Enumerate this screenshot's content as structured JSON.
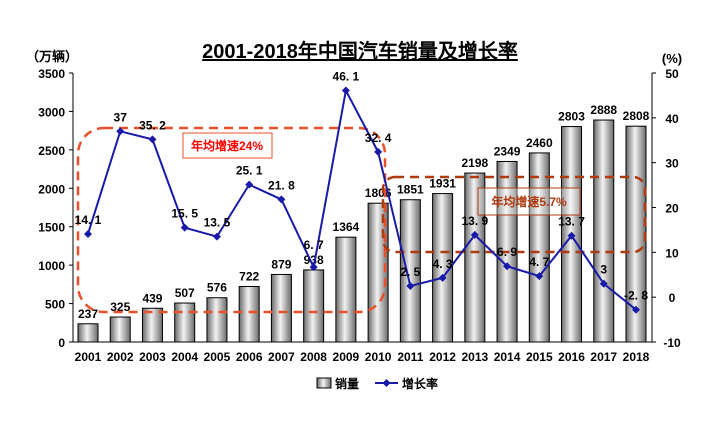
{
  "chart_data": {
    "type": "bar+line",
    "title": "2001-2018年中国汽车销量及增长率",
    "ylabel_left": "（万辆）",
    "ylabel_right": "(%)",
    "categories": [
      "2001",
      "2002",
      "2003",
      "2004",
      "2005",
      "2006",
      "2007",
      "2008",
      "2009",
      "2010",
      "2011",
      "2012",
      "2013",
      "2014",
      "2015",
      "2016",
      "2017",
      "2018"
    ],
    "series": [
      {
        "name": "销量",
        "type": "bar",
        "axis": "left",
        "values": [
          237,
          325,
          439,
          507,
          576,
          722,
          879,
          938,
          1364,
          1806,
          1851,
          1931,
          2198,
          2349,
          2460,
          2803,
          2888,
          2808
        ],
        "labels": [
          "237",
          "325",
          "439",
          "507",
          "576",
          "722",
          "879",
          "938",
          "1364",
          "1806",
          "1851",
          "1931",
          "2198",
          "2349",
          "2460",
          "2803",
          "2888",
          "2808"
        ]
      },
      {
        "name": "增长率",
        "type": "line",
        "axis": "right",
        "values": [
          14.1,
          37,
          35.2,
          15.5,
          13.5,
          25.1,
          21.8,
          6.7,
          46.1,
          32.4,
          2.5,
          4.3,
          13.9,
          6.9,
          4.7,
          13.7,
          3,
          -2.8
        ],
        "labels": [
          "14. 1",
          "37",
          "35. 2",
          "15. 5",
          "13. 5",
          "25. 1",
          "21. 8",
          "6. 7",
          "46. 1",
          "32. 4",
          "2. 5",
          "4. 3",
          "13. 9",
          "6. 9",
          "4. 7",
          "13. 7",
          "3",
          "-2. 8"
        ]
      }
    ],
    "ylim_left": [
      0,
      3500
    ],
    "yticks_left": [
      "0",
      "500",
      "1000",
      "1500",
      "2000",
      "2500",
      "3000",
      "3500"
    ],
    "ylim_right": [
      -10,
      50
    ],
    "yticks_right": [
      "-10",
      "0",
      "10",
      "20",
      "30",
      "40",
      "50"
    ],
    "grid": false,
    "legend": "bottom",
    "annotations": [
      {
        "text": "年均增速24%",
        "range": [
          "2001",
          "2010"
        ]
      },
      {
        "text": "年均增速5.7%",
        "range": [
          "2011",
          "2018"
        ]
      }
    ],
    "colors": {
      "line": "#1a1aa8",
      "bar": "#a0a0a0",
      "annotation1": "#e8502a",
      "annotation1_text": "#ff0000",
      "annotation2": "#b03a10"
    }
  }
}
